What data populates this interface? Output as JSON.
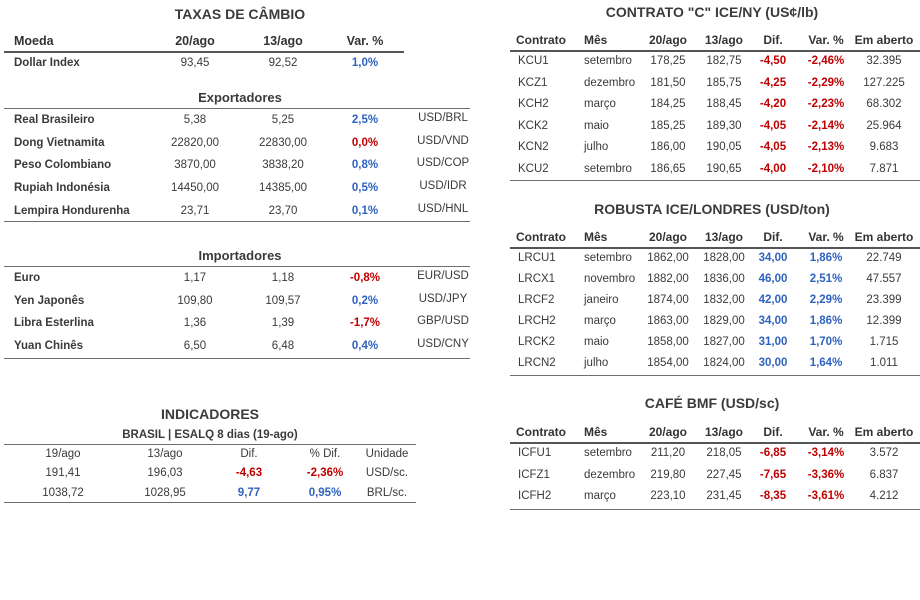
{
  "cambio": {
    "title": "TAXAS DE CÂMBIO",
    "headers": {
      "moeda": "Moeda",
      "d1": "20/ago",
      "d2": "13/ago",
      "var": "Var. %"
    },
    "dollar_index": {
      "name": "Dollar Index",
      "d1": "93,45",
      "d2": "92,52",
      "var": "1,0%"
    },
    "exportadores_title": "Exportadores",
    "exportadores": [
      {
        "name": "Real Brasileiro",
        "d1": "5,38",
        "d2": "5,25",
        "var": "2,5%",
        "pair": "USD/BRL",
        "sign": "pos"
      },
      {
        "name": "Dong Vietnamita",
        "d1": "22820,00",
        "d2": "22830,00",
        "var": "0,0%",
        "pair": "USD/VND",
        "sign": "neg"
      },
      {
        "name": "Peso Colombiano",
        "d1": "3870,00",
        "d2": "3838,20",
        "var": "0,8%",
        "pair": "USD/COP",
        "sign": "pos"
      },
      {
        "name": "Rupiah Indonésia",
        "d1": "14450,00",
        "d2": "14385,00",
        "var": "0,5%",
        "pair": "USD/IDR",
        "sign": "pos"
      },
      {
        "name": "Lempira Hondurenha",
        "d1": "23,71",
        "d2": "23,70",
        "var": "0,1%",
        "pair": "USD/HNL",
        "sign": "pos"
      }
    ],
    "importadores_title": "Importadores",
    "importadores": [
      {
        "name": "Euro",
        "d1": "1,17",
        "d2": "1,18",
        "var": "-0,8%",
        "pair": "EUR/USD",
        "sign": "neg"
      },
      {
        "name": "Yen Japonês",
        "d1": "109,80",
        "d2": "109,57",
        "var": "0,2%",
        "pair": "USD/JPY",
        "sign": "pos"
      },
      {
        "name": "Libra Esterlina",
        "d1": "1,36",
        "d2": "1,39",
        "var": "-1,7%",
        "pair": "GBP/USD",
        "sign": "neg"
      },
      {
        "name": "Yuan Chinês",
        "d1": "6,50",
        "d2": "6,48",
        "var": "0,4%",
        "pair": "USD/CNY",
        "sign": "pos"
      }
    ]
  },
  "indicadores": {
    "title": "INDICADORES",
    "subtitle": "BRASIL | ESALQ 8 dias (19-ago)",
    "headers": {
      "d1": "19/ago",
      "d2": "13/ago",
      "dif": "Dif.",
      "pdif": "% Dif.",
      "unit": "Unidade"
    },
    "rows": [
      {
        "d1": "191,41",
        "d2": "196,03",
        "dif": "-4,63",
        "pdif": "-2,36%",
        "unit": "USD/sc.",
        "sign": "neg"
      },
      {
        "d1": "1038,72",
        "d2": "1028,95",
        "dif": "9,77",
        "pdif": "0,95%",
        "unit": "BRL/sc.",
        "sign": "pos"
      }
    ]
  },
  "headers_common": {
    "contrato": "Contrato",
    "mes": "Mês",
    "d1": "20/ago",
    "d2": "13/ago",
    "dif": "Dif.",
    "var": "Var. %",
    "aberto": "Em aberto"
  },
  "contrato_c": {
    "title": "CONTRATO \"C\" ICE/NY (US¢/lb)",
    "rows": [
      {
        "code": "KCU1",
        "mes": "setembro",
        "d1": "178,25",
        "d2": "182,75",
        "dif": "-4,50",
        "var": "-2,46%",
        "aberto": "32.395",
        "sign": "neg"
      },
      {
        "code": "KCZ1",
        "mes": "dezembro",
        "d1": "181,50",
        "d2": "185,75",
        "dif": "-4,25",
        "var": "-2,29%",
        "aberto": "127.225",
        "sign": "neg"
      },
      {
        "code": "KCH2",
        "mes": "março",
        "d1": "184,25",
        "d2": "188,45",
        "dif": "-4,20",
        "var": "-2,23%",
        "aberto": "68.302",
        "sign": "neg"
      },
      {
        "code": "KCK2",
        "mes": "maio",
        "d1": "185,25",
        "d2": "189,30",
        "dif": "-4,05",
        "var": "-2,14%",
        "aberto": "25.964",
        "sign": "neg"
      },
      {
        "code": "KCN2",
        "mes": "julho",
        "d1": "186,00",
        "d2": "190,05",
        "dif": "-4,05",
        "var": "-2,13%",
        "aberto": "9.683",
        "sign": "neg"
      },
      {
        "code": "KCU2",
        "mes": "setembro",
        "d1": "186,65",
        "d2": "190,65",
        "dif": "-4,00",
        "var": "-2,10%",
        "aberto": "7.871",
        "sign": "neg"
      }
    ]
  },
  "robusta": {
    "title": "ROBUSTA ICE/LONDRES (USD/ton)",
    "rows": [
      {
        "code": "LRCU1",
        "mes": "setembro",
        "d1": "1862,00",
        "d2": "1828,00",
        "dif": "34,00",
        "var": "1,86%",
        "aberto": "22.749",
        "sign": "pos"
      },
      {
        "code": "LRCX1",
        "mes": "novembro",
        "d1": "1882,00",
        "d2": "1836,00",
        "dif": "46,00",
        "var": "2,51%",
        "aberto": "47.557",
        "sign": "pos"
      },
      {
        "code": "LRCF2",
        "mes": "janeiro",
        "d1": "1874,00",
        "d2": "1832,00",
        "dif": "42,00",
        "var": "2,29%",
        "aberto": "23.399",
        "sign": "pos"
      },
      {
        "code": "LRCH2",
        "mes": "março",
        "d1": "1863,00",
        "d2": "1829,00",
        "dif": "34,00",
        "var": "1,86%",
        "aberto": "12.399",
        "sign": "pos"
      },
      {
        "code": "LRCK2",
        "mes": "maio",
        "d1": "1858,00",
        "d2": "1827,00",
        "dif": "31,00",
        "var": "1,70%",
        "aberto": "1.715",
        "sign": "pos"
      },
      {
        "code": "LRCN2",
        "mes": "julho",
        "d1": "1854,00",
        "d2": "1824,00",
        "dif": "30,00",
        "var": "1,64%",
        "aberto": "1.011",
        "sign": "pos"
      }
    ]
  },
  "bmf": {
    "title": "CAFÉ BMF (USD/sc)",
    "rows": [
      {
        "code": "ICFU1",
        "mes": "setembro",
        "d1": "211,20",
        "d2": "218,05",
        "dif": "-6,85",
        "var": "-3,14%",
        "aberto": "3.572",
        "sign": "neg"
      },
      {
        "code": "ICFZ1",
        "mes": "dezembro",
        "d1": "219,80",
        "d2": "227,45",
        "dif": "-7,65",
        "var": "-3,36%",
        "aberto": "6.837",
        "sign": "neg"
      },
      {
        "code": "ICFH2",
        "mes": "março",
        "d1": "223,10",
        "d2": "231,45",
        "dif": "-8,35",
        "var": "-3,61%",
        "aberto": "4.212",
        "sign": "neg"
      }
    ]
  }
}
